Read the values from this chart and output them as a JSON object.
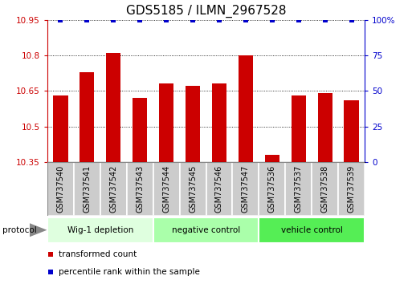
{
  "title": "GDS5185 / ILMN_2967528",
  "samples": [
    "GSM737540",
    "GSM737541",
    "GSM737542",
    "GSM737543",
    "GSM737544",
    "GSM737545",
    "GSM737546",
    "GSM737547",
    "GSM737536",
    "GSM737537",
    "GSM737538",
    "GSM737539"
  ],
  "bar_values": [
    10.63,
    10.73,
    10.81,
    10.62,
    10.68,
    10.67,
    10.68,
    10.8,
    10.38,
    10.63,
    10.64,
    10.61
  ],
  "percentile_values": [
    100,
    100,
    100,
    100,
    100,
    100,
    100,
    100,
    100,
    100,
    100,
    100
  ],
  "bar_color": "#cc0000",
  "percentile_color": "#0000cc",
  "ylim_left": [
    10.35,
    10.95
  ],
  "ylim_right": [
    0,
    100
  ],
  "yticks_left": [
    10.35,
    10.5,
    10.65,
    10.8,
    10.95
  ],
  "yticks_right": [
    0,
    25,
    50,
    75,
    100
  ],
  "groups": [
    {
      "label": "Wig-1 depletion",
      "start": 0,
      "end": 4,
      "color": "#dfffdf"
    },
    {
      "label": "negative control",
      "start": 4,
      "end": 8,
      "color": "#aaffaa"
    },
    {
      "label": "vehicle control",
      "start": 8,
      "end": 12,
      "color": "#55ee55"
    }
  ],
  "sample_box_color": "#cccccc",
  "sample_box_edge": "#999999",
  "group_label": "protocol",
  "legend_items": [
    {
      "color": "#cc0000",
      "label": "transformed count"
    },
    {
      "color": "#0000cc",
      "label": "percentile rank within the sample"
    }
  ],
  "bar_width": 0.55,
  "background_color": "#ffffff",
  "grid_color": "#000000",
  "title_fontsize": 11,
  "tick_fontsize": 7.5,
  "label_fontsize": 8.5
}
